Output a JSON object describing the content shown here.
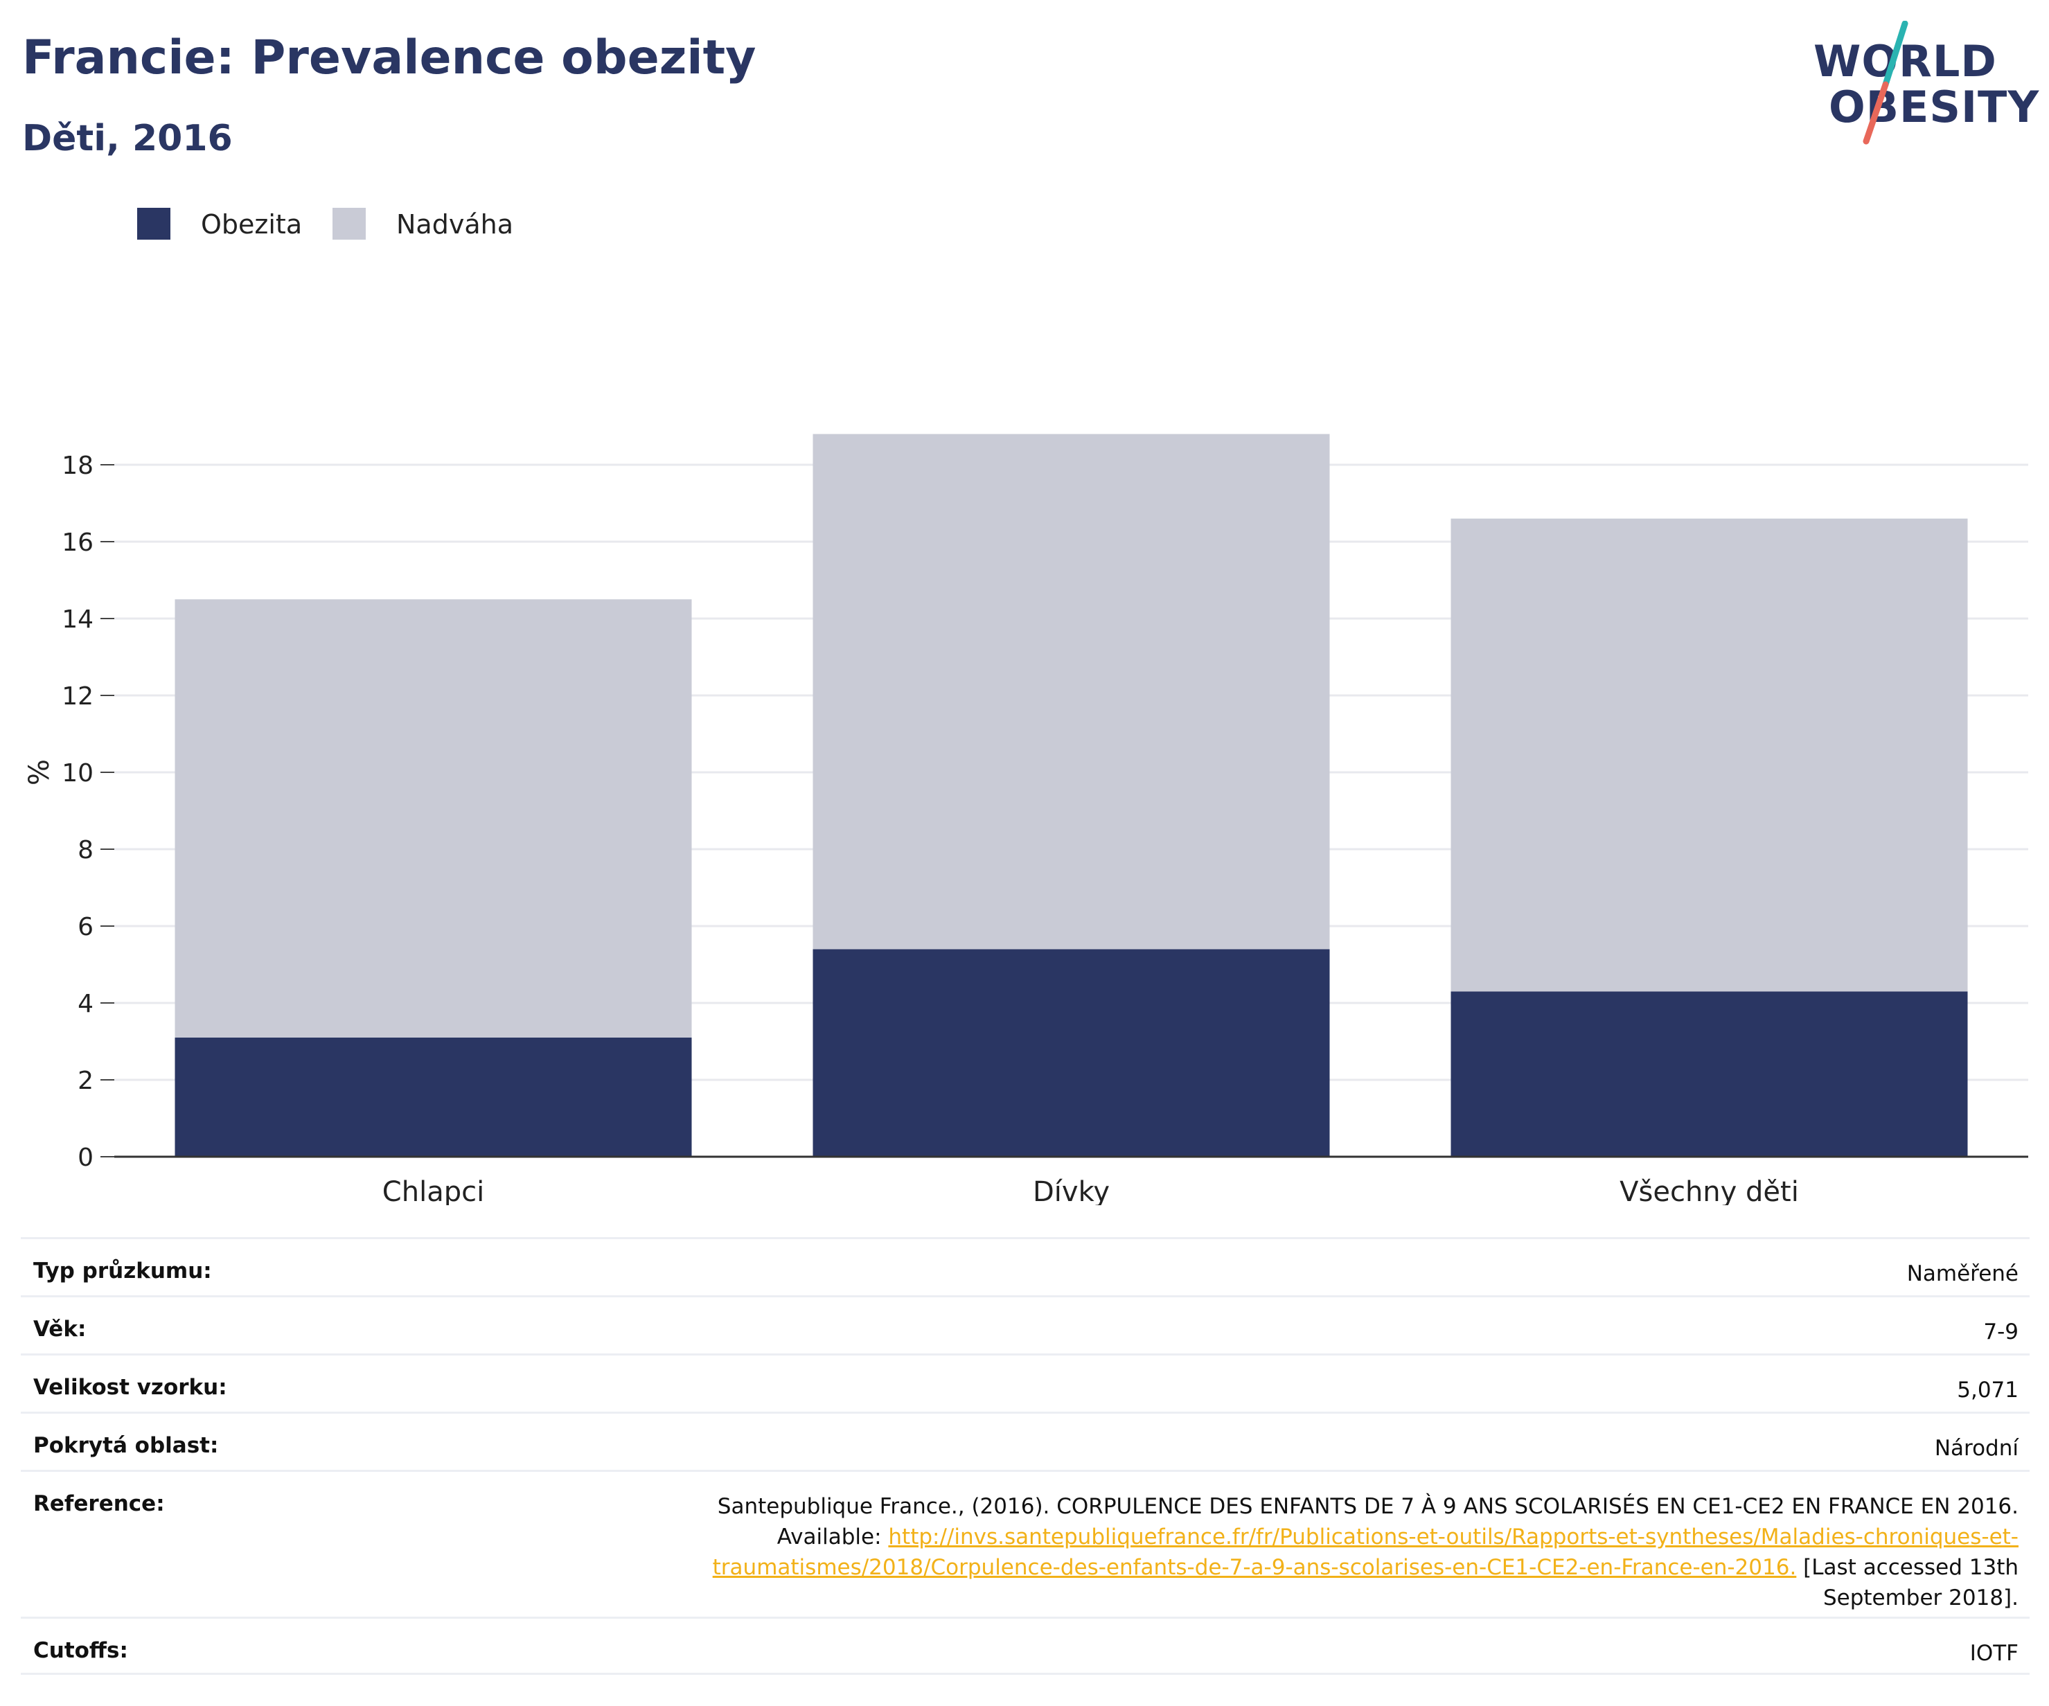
{
  "header": {
    "title": "Francie: Prevalence obezity",
    "subtitle": "Děti, 2016"
  },
  "logo": {
    "line1": "WORLD",
    "line2": "OBESITY",
    "accent_colors": [
      "#2ab3b1",
      "#e8685a"
    ]
  },
  "legend": [
    {
      "label": "Obezita",
      "color": "#2a3663"
    },
    {
      "label": "Nadváha",
      "color": "#c9cbd6"
    }
  ],
  "chart_data": {
    "type": "bar",
    "stacked": true,
    "categories": [
      "Chlapci",
      "Dívky",
      "Všechny děti"
    ],
    "series": [
      {
        "name": "Obezita",
        "values": [
          3.1,
          5.4,
          4.3
        ],
        "color": "#2a3663"
      },
      {
        "name": "Nadváha",
        "values": [
          11.4,
          13.4,
          12.3
        ],
        "color": "#c9cbd6"
      }
    ],
    "totals": [
      14.5,
      18.8,
      16.6
    ],
    "ylabel": "%",
    "ylim": [
      0,
      20
    ],
    "yticks": [
      0,
      2,
      4,
      6,
      8,
      10,
      12,
      14,
      16,
      18
    ],
    "grid": true
  },
  "info": {
    "survey_type": {
      "key": "Typ průzkumu:",
      "value": "Naměřené"
    },
    "age": {
      "key": "Věk:",
      "value": "7-9"
    },
    "sample_size": {
      "key": "Velikost vzorku:",
      "value": "5,071"
    },
    "area": {
      "key": "Pokrytá oblast:",
      "value": "Národní"
    },
    "reference": {
      "key": "Reference:",
      "text_before": "Santepublique France., (2016). CORPULENCE DES ENFANTS DE 7 À 9 ANS SCOLARISÉS EN CE1-CE2 EN FRANCE EN 2016. Available: ",
      "link": "http://invs.santepubliquefrance.fr/fr/Publications-et-outils/Rapports-et-syntheses/Maladies-chroniques-et-traumatismes/2018/Corpulence-des-enfants-de-7-a-9-ans-scolarises-en-CE1-CE2-en-France-en-2016.",
      "text_after": " [Last accessed 13th September 2018]."
    },
    "cutoffs": {
      "key": "Cutoffs:",
      "value": "IOTF"
    }
  }
}
